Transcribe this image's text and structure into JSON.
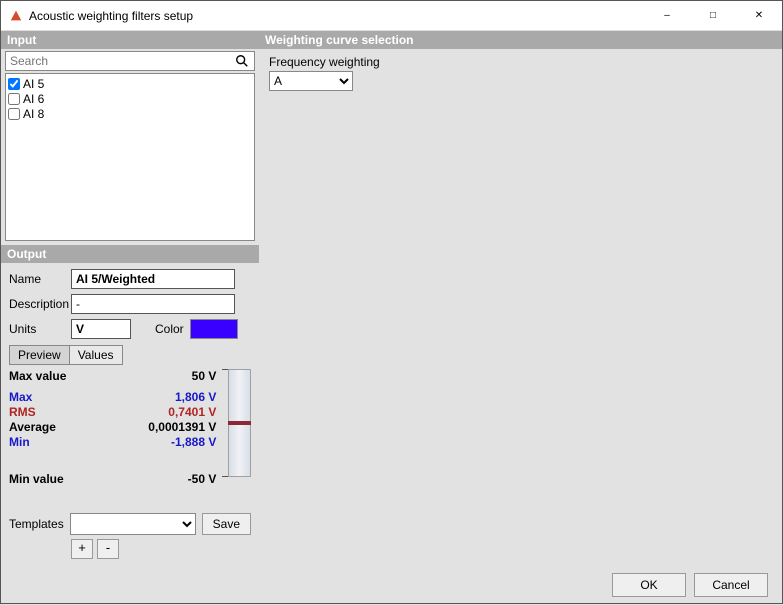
{
  "window": {
    "title": "Acoustic weighting filters setup",
    "app_icon_color": "#d94a2b"
  },
  "sections": {
    "input_header": "Input",
    "output_header": "Output",
    "weighting_header": "Weighting curve selection"
  },
  "search": {
    "placeholder": "Search"
  },
  "channels": [
    {
      "label": "AI 5",
      "checked": true
    },
    {
      "label": "AI 6",
      "checked": false
    },
    {
      "label": "AI 8",
      "checked": false
    }
  ],
  "output": {
    "name_label": "Name",
    "name_value": "AI 5/Weighted",
    "desc_label": "Description",
    "desc_value": "-",
    "units_label": "Units",
    "units_value": "V",
    "color_label": "Color",
    "color_value": "#3a00ff"
  },
  "tabs": {
    "preview": "Preview",
    "values": "Values"
  },
  "preview": {
    "max_value_label": "Max value",
    "max_value": "50 V",
    "min_value_label": "Min value",
    "min_value": "-50 V",
    "stats": [
      {
        "label": "Max",
        "value": "1,806 V",
        "color": "#1818c7"
      },
      {
        "label": "RMS",
        "value": "0,7401 V",
        "color": "#b02424"
      },
      {
        "label": "Average",
        "value": "0,0001391 V",
        "color": "#000000"
      },
      {
        "label": "Min",
        "value": "-1,888 V",
        "color": "#1818c7"
      }
    ],
    "scale_min": -50,
    "scale_max": 50,
    "data_min": -1.888,
    "data_max": 1.806
  },
  "templates": {
    "label": "Templates",
    "save": "Save",
    "plus": "+",
    "minus": "-"
  },
  "weighting": {
    "label": "Frequency weighting",
    "selected": "A"
  },
  "footer": {
    "ok": "OK",
    "cancel": "Cancel"
  }
}
